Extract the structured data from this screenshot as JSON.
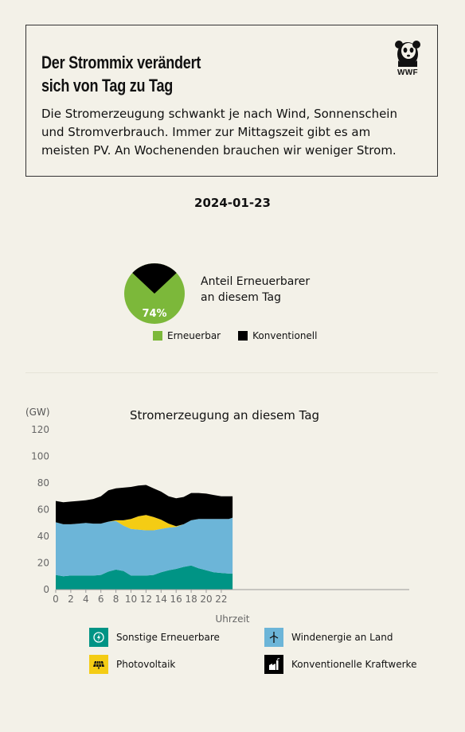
{
  "header": {
    "title_line1": "Der Strommix verändert",
    "title_line2": "sich von Tag zu Tag",
    "logo_text": "WWF",
    "description": "Die Stromerzeugung schwankt je nach Wind, Sonnenschein und Stromverbrauch. Immer zur Mittagszeit gibt es am meisten PV. An Wochenenden brauchen wir weniger Strom."
  },
  "date": "2024-01-23",
  "share": {
    "percent_label": "74%",
    "percent": 74,
    "caption_line1": "Anteil Erneuerbarer",
    "caption_line2": "an diesem Tag",
    "legend": [
      {
        "label": "Erneuerbar",
        "color": "#7cb83a"
      },
      {
        "label": "Konventionell",
        "color": "#000000"
      }
    ]
  },
  "chart_data": {
    "type": "area",
    "title": "Stromerzeugung an diesem Tag",
    "ylabel": "(GW)",
    "xlabel": "Uhrzeit",
    "ylim": [
      0,
      120
    ],
    "xlim": [
      0,
      24
    ],
    "yticks": [
      0,
      20,
      40,
      60,
      80,
      100,
      120
    ],
    "xticks": [
      0,
      2,
      4,
      6,
      8,
      10,
      12,
      14,
      16,
      18,
      20,
      22
    ],
    "stacked": true,
    "x": [
      0,
      1,
      2,
      3,
      4,
      5,
      6,
      7,
      8,
      9,
      10,
      11,
      12,
      13,
      14,
      15,
      16,
      17,
      18,
      19,
      20,
      21,
      22,
      23,
      23.5
    ],
    "series": [
      {
        "name": "Sonstige Erneuerbare",
        "color": "#009485",
        "values": [
          11,
          10,
          10.5,
          10.5,
          10.5,
          10.5,
          11,
          13.5,
          15,
          14,
          10.5,
          10.5,
          10.5,
          11,
          13,
          14.5,
          15.5,
          17,
          18,
          16,
          14.5,
          13,
          12.5,
          12,
          12
        ]
      },
      {
        "name": "Windenergie an Land",
        "color": "#6cb5d8",
        "values": [
          39.5,
          39,
          38.5,
          39,
          39.5,
          39,
          38.5,
          37.5,
          36.5,
          34,
          35,
          34.5,
          34,
          33.5,
          32.5,
          32,
          31.5,
          32,
          34,
          37,
          38.5,
          40,
          40.5,
          41,
          42
        ]
      },
      {
        "name": "Photovoltaik",
        "color": "#f4cc14",
        "values": [
          0,
          0,
          0,
          0,
          0,
          0,
          0,
          0,
          0.5,
          4,
          7.5,
          10,
          11.5,
          10,
          7,
          3,
          0.5,
          0,
          0,
          0,
          0,
          0,
          0,
          0,
          0
        ]
      },
      {
        "name": "Konventionelle Kraftwerke",
        "color": "#000000",
        "values": [
          16,
          16.5,
          17,
          17,
          17,
          18.5,
          20.5,
          23.5,
          24,
          24.5,
          24,
          23,
          22.5,
          21.5,
          21,
          20.5,
          21,
          20.5,
          20.5,
          19.5,
          19,
          18,
          17,
          17,
          16
        ]
      }
    ]
  }
}
